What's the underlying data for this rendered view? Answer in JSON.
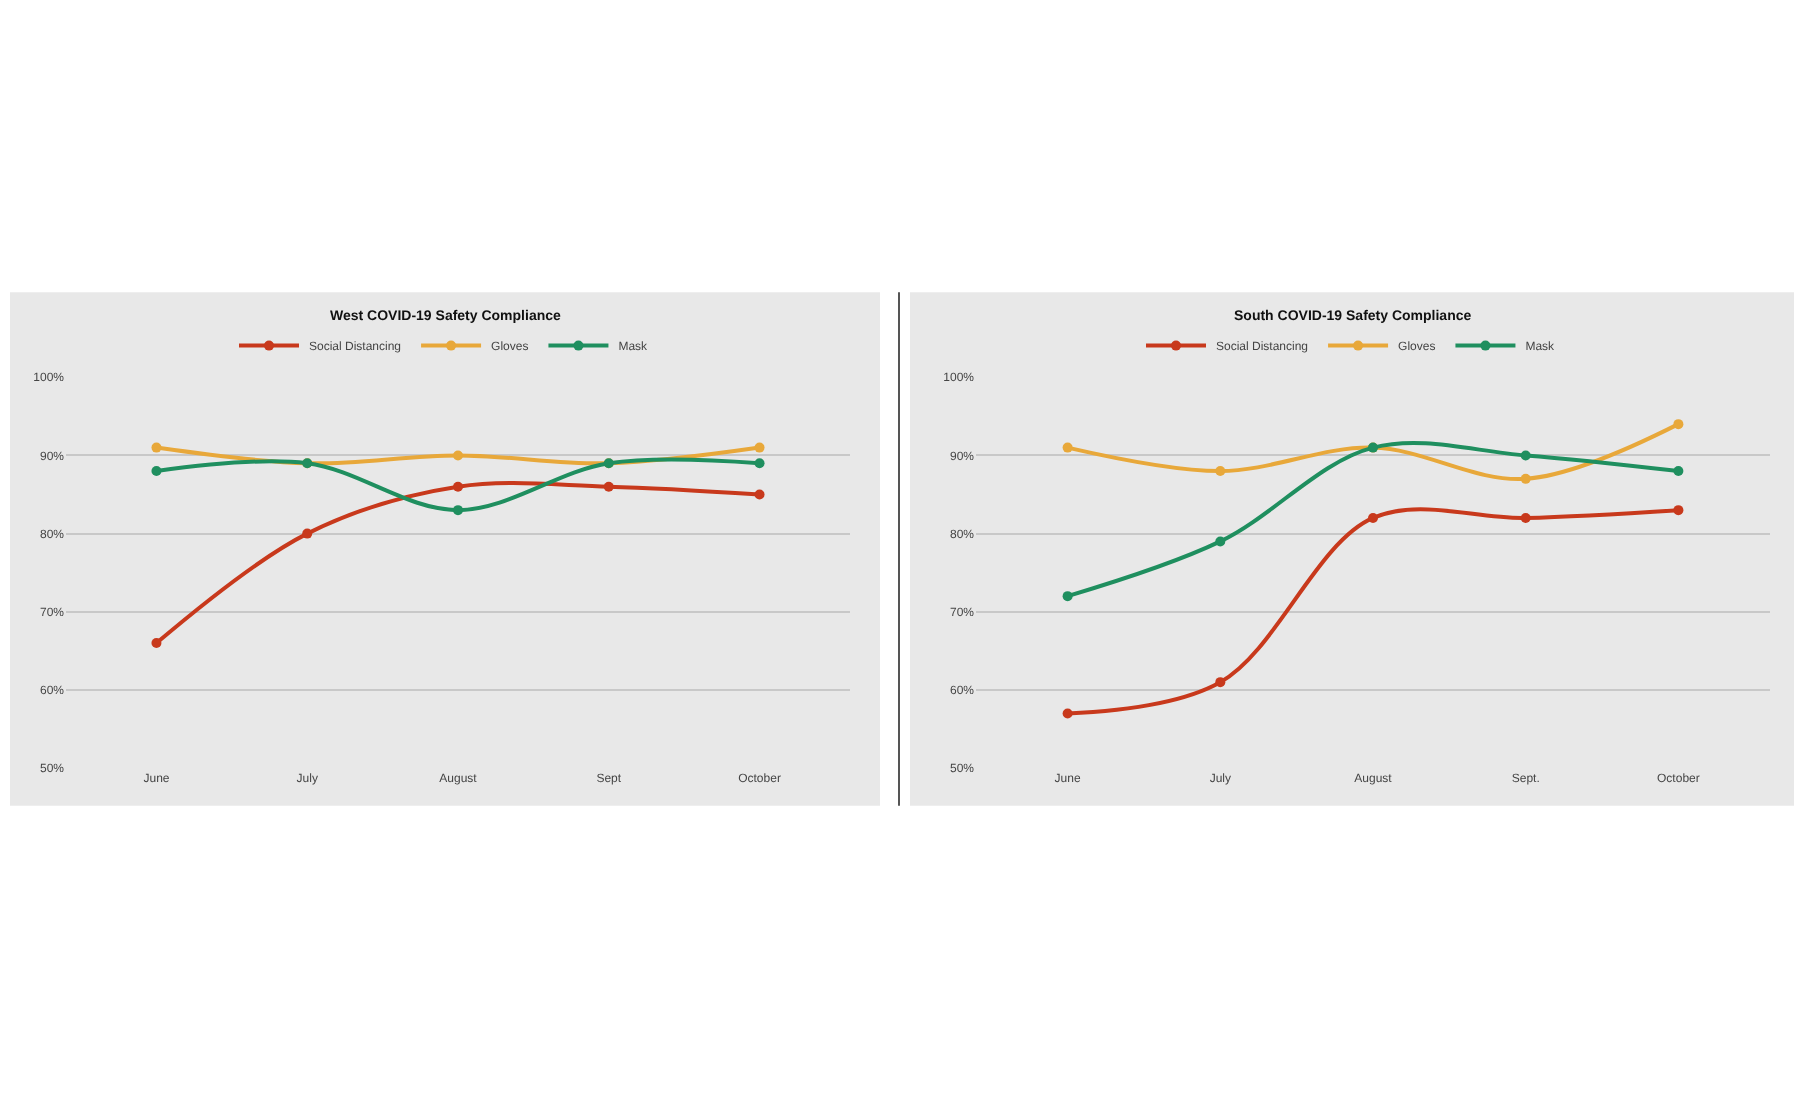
{
  "chart_data": [
    {
      "type": "line",
      "title": "West COVID-19 Safety Compliance",
      "categories": [
        "June",
        "July",
        "August",
        "Sept",
        "October"
      ],
      "series": [
        {
          "name": "Social Distancing",
          "color": "#c8391c",
          "values": [
            66,
            80,
            86,
            86,
            85
          ]
        },
        {
          "name": "Gloves",
          "color": "#e8a83a",
          "values": [
            91,
            89,
            90,
            89,
            91
          ]
        },
        {
          "name": "Mask",
          "color": "#1f8f5f",
          "values": [
            88,
            89,
            83,
            89,
            89
          ]
        }
      ],
      "ylim": [
        50,
        100
      ],
      "yticks": [
        {
          "value": 50,
          "label": "50%"
        },
        {
          "value": 60,
          "label": "60%"
        },
        {
          "value": 70,
          "label": "70%"
        },
        {
          "value": 80,
          "label": "80%"
        },
        {
          "value": 90,
          "label": "90%"
        },
        {
          "value": 100,
          "label": "100%"
        }
      ],
      "grid": "y",
      "legend": "top",
      "marker": "circle",
      "line_style": "solid"
    },
    {
      "type": "line",
      "title": "South COVID-19 Safety Compliance",
      "categories": [
        "June",
        "July",
        "August",
        "Sept.",
        "October"
      ],
      "series": [
        {
          "name": "Social Distancing",
          "color": "#c8391c",
          "values": [
            57,
            61,
            82,
            82,
            83
          ]
        },
        {
          "name": "Gloves",
          "color": "#e8a83a",
          "values": [
            91,
            88,
            91,
            87,
            94
          ]
        },
        {
          "name": "Mask",
          "color": "#1f8f5f",
          "values": [
            72,
            79,
            91,
            90,
            88
          ]
        }
      ],
      "ylim": [
        50,
        100
      ],
      "yticks": [
        {
          "value": 50,
          "label": "50%"
        },
        {
          "value": 60,
          "label": "60%"
        },
        {
          "value": 70,
          "label": "70%"
        },
        {
          "value": 80,
          "label": "80%"
        },
        {
          "value": 90,
          "label": "90%"
        },
        {
          "value": 100,
          "label": "100%"
        }
      ],
      "grid": "y",
      "legend": "top",
      "marker": "circle",
      "line_style": "solid"
    }
  ]
}
